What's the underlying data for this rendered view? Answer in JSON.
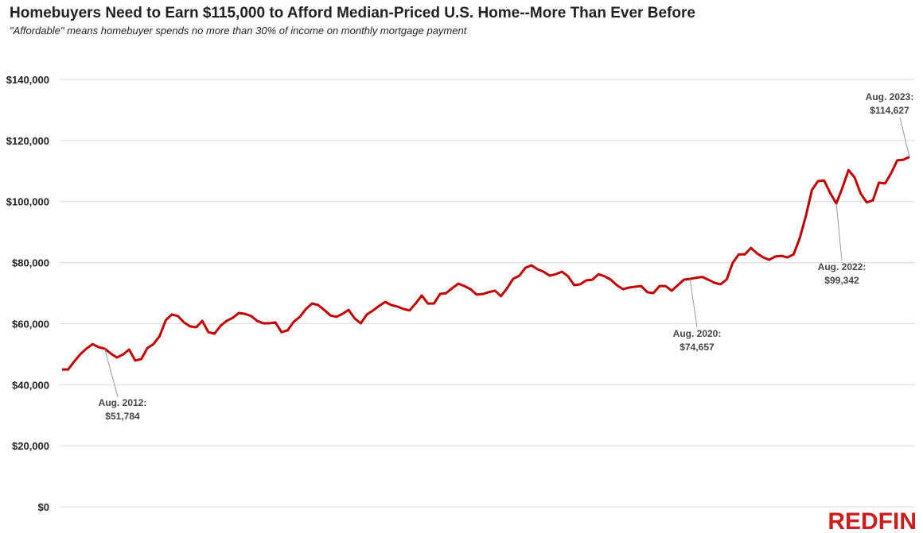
{
  "chart_data": {
    "type": "line",
    "title": "Homebuyers Need to Earn $115,000 to Afford Median-Priced U.S. Home--More Than Ever Before",
    "subtitle": "\"Affordable\" means homebuyer spends no more than 30% of income on monthly mortgage payment",
    "logo": "REDFIN",
    "grid": true,
    "ylim": [
      0,
      140000
    ],
    "yticks": [
      {
        "value": 0,
        "label": "$0"
      },
      {
        "value": 20000,
        "label": "$20,000"
      },
      {
        "value": 40000,
        "label": "$40,000"
      },
      {
        "value": 60000,
        "label": "$60,000"
      },
      {
        "value": 80000,
        "label": "$80,000"
      },
      {
        "value": 100000,
        "label": "$100,000"
      },
      {
        "value": 120000,
        "label": "$120,000"
      },
      {
        "value": 140000,
        "label": "$140,000"
      }
    ],
    "categories": [
      null,
      null,
      null,
      null,
      null,
      null,
      null,
      null,
      null,
      null,
      null,
      null,
      null,
      null,
      null,
      null,
      null,
      null,
      null,
      null,
      null,
      null,
      null,
      null,
      null,
      null,
      null,
      null,
      null,
      null,
      null,
      null,
      null,
      null,
      null,
      null,
      null,
      null,
      null,
      null,
      null,
      null,
      null,
      null,
      null,
      null,
      null,
      null,
      null,
      null,
      null,
      null,
      null,
      null,
      null,
      null,
      null,
      null,
      null,
      null,
      null,
      null,
      null,
      null,
      null,
      null,
      null,
      null,
      null,
      null,
      null,
      null,
      null,
      null,
      null,
      null,
      null,
      null,
      null,
      null,
      null,
      null,
      null,
      null,
      null,
      null,
      null,
      null,
      null,
      null,
      null,
      null,
      null,
      null,
      null,
      null,
      null,
      null,
      null,
      null,
      null,
      null,
      null,
      null,
      null,
      null,
      null,
      null,
      null,
      null,
      null,
      null,
      null,
      null,
      null,
      null,
      null,
      null,
      null,
      null,
      null,
      null,
      null,
      null,
      null,
      null,
      null,
      null,
      null,
      null,
      null,
      null,
      null,
      null,
      null,
      null,
      null,
      null,
      null,
      null
    ],
    "series": [
      {
        "color": "#c00000",
        "values": [
          45000,
          45000,
          47600,
          50000,
          51800,
          53300,
          52300,
          51784,
          50200,
          48900,
          49900,
          51500,
          47900,
          48400,
          52000,
          53300,
          55900,
          61100,
          63000,
          62500,
          60400,
          59100,
          58800,
          60900,
          57200,
          56700,
          59300,
          60900,
          61900,
          63500,
          63200,
          62500,
          60900,
          60100,
          60100,
          60400,
          57200,
          57800,
          60600,
          62200,
          64800,
          66600,
          66100,
          64500,
          62700,
          62200,
          63200,
          64500,
          61700,
          60100,
          63000,
          64300,
          65800,
          67100,
          66100,
          65600,
          64800,
          64300,
          66600,
          69200,
          66600,
          66600,
          69700,
          70000,
          71600,
          73100,
          72300,
          71300,
          69500,
          69700,
          70300,
          70800,
          69000,
          71600,
          74700,
          75700,
          78300,
          79100,
          77800,
          77000,
          75700,
          76200,
          77000,
          75500,
          72600,
          72900,
          74200,
          74400,
          76200,
          75500,
          74400,
          72600,
          71300,
          71800,
          72100,
          72300,
          70300,
          70000,
          72300,
          72300,
          70800,
          72600,
          74400,
          74657,
          75000,
          75300,
          74400,
          73400,
          72900,
          74400,
          79900,
          82700,
          82700,
          84800,
          83000,
          81700,
          80900,
          82000,
          82200,
          81700,
          82700,
          88000,
          95200,
          103800,
          106700,
          106900,
          102800,
          99342,
          104500,
          110300,
          107900,
          102600,
          99700,
          100400,
          106200,
          105900,
          109300,
          113500,
          113700,
          114627
        ]
      }
    ],
    "annotations": [
      {
        "label": "Aug. 2012:",
        "value": 51784,
        "value_label": "$51,784"
      },
      {
        "label": "Aug. 2020:",
        "value": 74657,
        "value_label": "$74,657"
      },
      {
        "label": "Aug. 2022:",
        "value": 99342,
        "value_label": "$99,342"
      },
      {
        "label": "Aug. 2023:",
        "value": 114627,
        "value_label": "$114,627"
      }
    ]
  }
}
